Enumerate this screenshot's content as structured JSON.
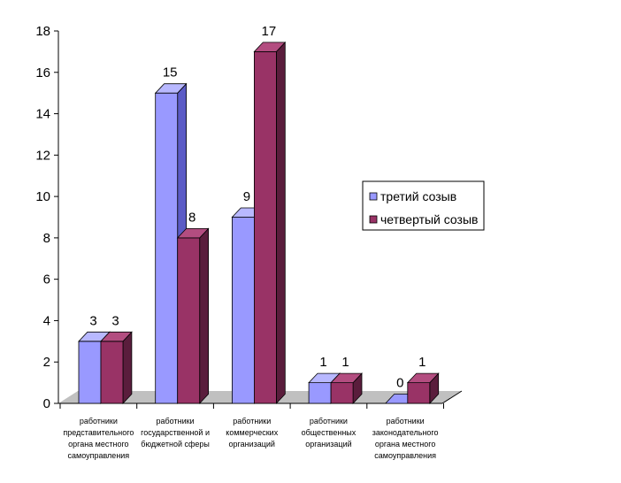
{
  "chart_data": {
    "type": "bar",
    "style": "3d-clustered-column",
    "categories": [
      "работники представительного органа местного самоуправления",
      "работники государственной и бюджетной сферы",
      "работники коммерческих организаций",
      "работники общественных организаций",
      "работники законодательного органа местного самоуправления"
    ],
    "category_lines": [
      [
        "работники",
        "представительного",
        "органа местного",
        "самоуправления"
      ],
      [
        "работники",
        "государственной и",
        "бюджетной сферы"
      ],
      [
        "работники",
        "коммерческих",
        "организаций"
      ],
      [
        "работники",
        "общественных",
        "организаций"
      ],
      [
        "работники",
        "законодательного",
        "органа местного",
        "самоуправления"
      ]
    ],
    "series": [
      {
        "name": "третий созыв",
        "values": [
          3,
          15,
          9,
          1,
          0
        ],
        "color": "#9999FF",
        "side": "#5b5bc6",
        "top": "#b8b8ff"
      },
      {
        "name": "четвертый созыв",
        "values": [
          3,
          8,
          17,
          1,
          1
        ],
        "color": "#993366",
        "side": "#5a1d3c",
        "top": "#b34d80"
      }
    ],
    "ylim": [
      0,
      18
    ],
    "yticks": [
      0,
      2,
      4,
      6,
      8,
      10,
      12,
      14,
      16,
      18
    ],
    "legend_position": "right",
    "grid": false,
    "floor_color": "#c0c0c0"
  }
}
